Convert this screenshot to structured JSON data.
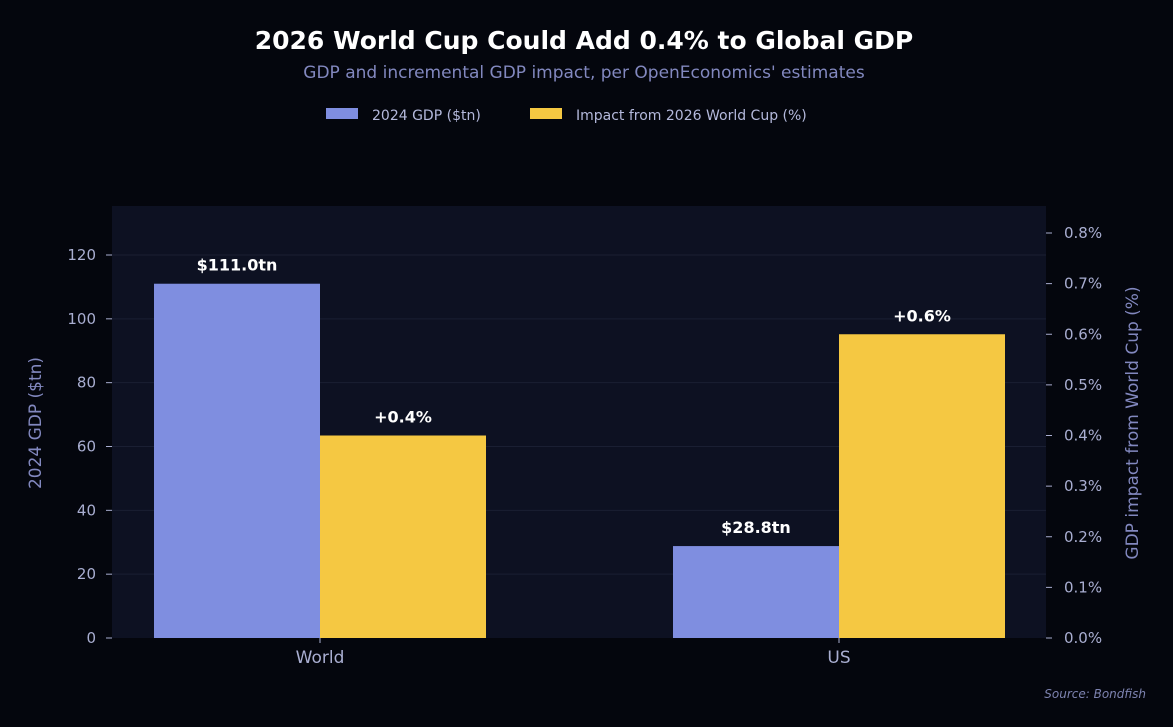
{
  "chart_data": {
    "type": "bar",
    "title": "2026 World Cup Could Add 0.4% to Global GDP",
    "subtitle": "GDP and incremental GDP impact, per OpenEconomics' estimates",
    "categories": [
      "World",
      "US"
    ],
    "series": [
      {
        "name": "2024 GDP ($tn)",
        "axis": "left",
        "color": "#7f8ee0",
        "values": [
          111.0,
          28.8
        ],
        "labels": [
          "$111.0tn",
          "$28.8tn"
        ]
      },
      {
        "name": "Impact from 2026 World Cup (%)",
        "axis": "right",
        "color": "#f5c842",
        "values": [
          0.4,
          0.6
        ],
        "labels": [
          "+0.4%",
          "+0.6%"
        ]
      }
    ],
    "ylabel": "2024 GDP ($tn)",
    "y2label": "GDP impact from World Cup (%)",
    "ylim": [
      0,
      135
    ],
    "y2lim": [
      0,
      0.85
    ],
    "yticks": [
      0,
      20,
      40,
      60,
      80,
      100,
      120
    ],
    "y2ticks": [
      0.0,
      0.1,
      0.2,
      0.3,
      0.4,
      0.5,
      0.6,
      0.7,
      0.8
    ],
    "y2tick_labels": [
      "0.0%",
      "0.1%",
      "0.2%",
      "0.3%",
      "0.4%",
      "0.5%",
      "0.6%",
      "0.7%",
      "0.8%"
    ],
    "legend_position": "top-center",
    "grid": true,
    "source": "Source: Bondfish"
  },
  "colors": {
    "background": "#04060d",
    "plot_background": "#0d1122",
    "grid": "#1a1f33"
  }
}
